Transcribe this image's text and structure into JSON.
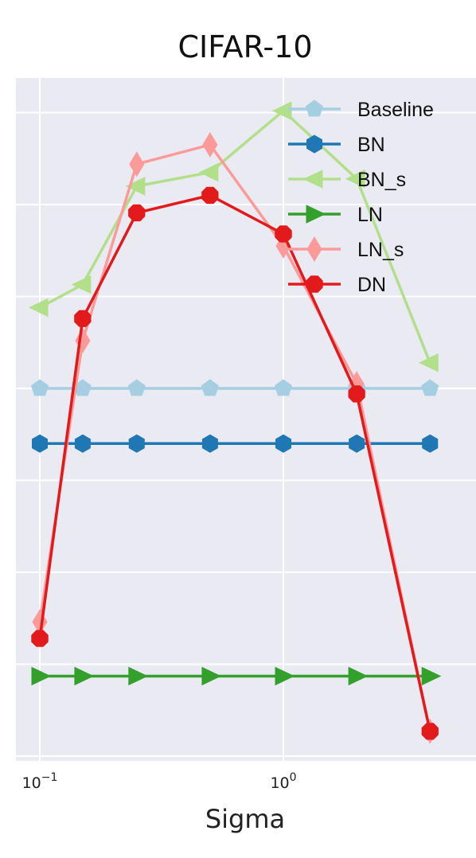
{
  "chart_data": {
    "type": "line",
    "title": "CIFAR-10",
    "xlabel": "Sigma",
    "ylabel": "",
    "xscale": "log",
    "x_tick_labels": [
      {
        "value": 0.1,
        "base": "10",
        "exp": "−1"
      },
      {
        "value": 1,
        "base": "10",
        "exp": "0"
      }
    ],
    "x": [
      0.1,
      0.15,
      0.25,
      0.5,
      1.0,
      2.0,
      4.0
    ],
    "grid": true,
    "legend_position": "top-right",
    "series": [
      {
        "name": "Baseline",
        "color": "#a6cee3",
        "marker": "pentagon",
        "values": [
          0.0,
          0.0,
          0.0,
          0.0,
          0.0,
          0.0,
          0.0
        ]
      },
      {
        "name": "BN",
        "color": "#1f78b4",
        "marker": "hexagon",
        "values": [
          -0.6,
          -0.6,
          -0.6,
          -0.6,
          -0.6,
          -0.6,
          -0.6
        ]
      },
      {
        "name": "BN_s",
        "color": "#b2df8a",
        "marker": "triangle-left",
        "values": [
          0.88,
          1.13,
          2.2,
          2.35,
          3.02,
          2.28,
          0.28
        ]
      },
      {
        "name": "LN",
        "color": "#33a02c",
        "marker": "triangle-right",
        "values": [
          -3.13,
          -3.13,
          -3.13,
          -3.13,
          -3.13,
          -3.13,
          -3.13
        ]
      },
      {
        "name": "LN_s",
        "color": "#fb9a99",
        "marker": "diamond",
        "values": [
          -2.54,
          0.52,
          2.44,
          2.65,
          1.55,
          0.05,
          -3.73
        ]
      },
      {
        "name": "DN",
        "color": "#e31a1c",
        "marker": "octagon",
        "values": [
          -2.72,
          0.76,
          1.91,
          2.1,
          1.68,
          -0.06,
          -3.73
        ]
      }
    ]
  }
}
